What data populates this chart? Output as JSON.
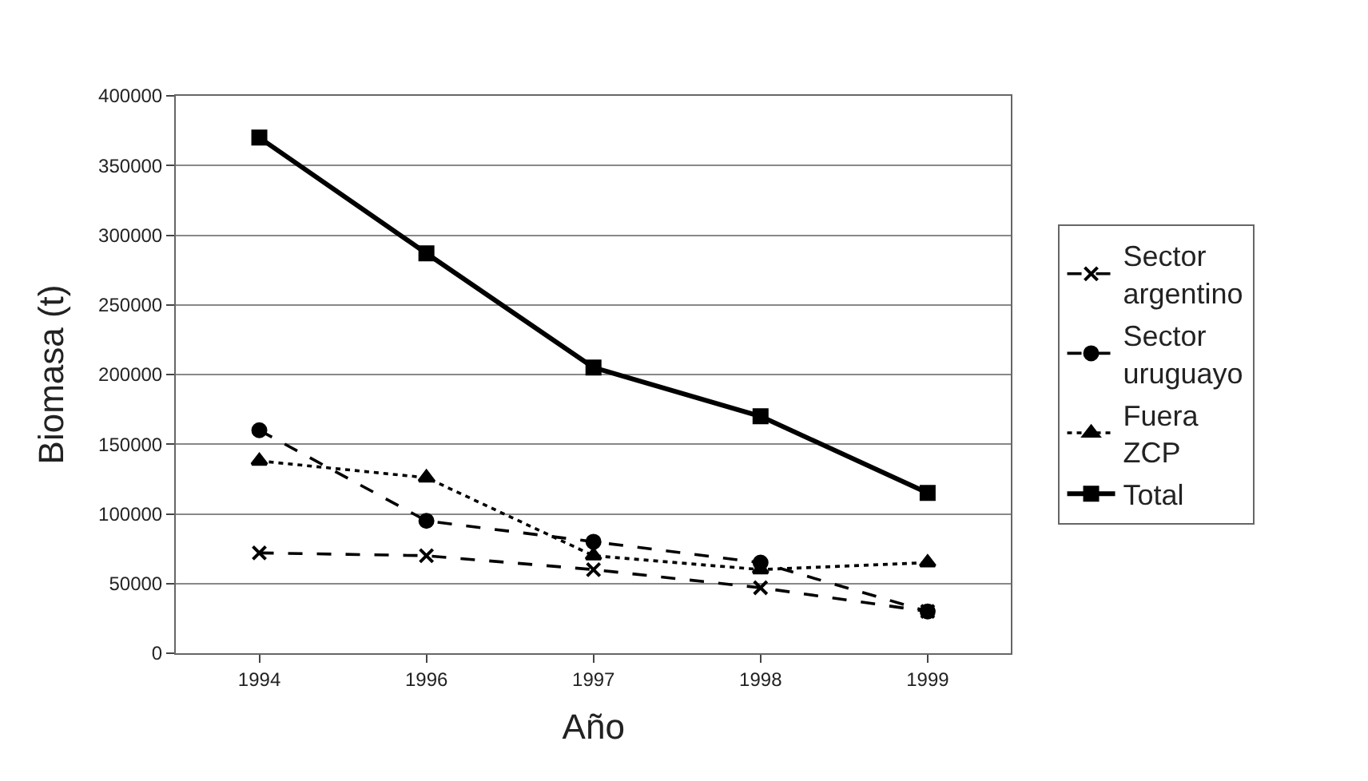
{
  "chart_data": {
    "type": "line",
    "xlabel": "Año",
    "ylabel": "Biomasa (t)",
    "categories": [
      "1994",
      "1996",
      "1997",
      "1998",
      "1999"
    ],
    "series": [
      {
        "name": "Sector argentino",
        "color": "#000000",
        "marker": "cross",
        "line_style": "dashed",
        "values": [
          72000,
          70000,
          60000,
          47000,
          30000
        ]
      },
      {
        "name": "Sector uruguayo",
        "color": "#000000",
        "marker": "circle",
        "line_style": "dashed",
        "values": [
          160000,
          95000,
          80000,
          65000,
          30000
        ]
      },
      {
        "name": "Fuera ZCP",
        "color": "#000000",
        "marker": "triangle",
        "line_style": "dotted",
        "values": [
          138000,
          126000,
          70000,
          60000,
          65000
        ]
      },
      {
        "name": "Total",
        "color": "#000000",
        "marker": "square",
        "line_style": "solid",
        "values": [
          370000,
          287000,
          205000,
          170000,
          115000
        ]
      }
    ],
    "ylim": [
      0,
      400000
    ],
    "yticks": [
      0,
      50000,
      100000,
      150000,
      200000,
      250000,
      300000,
      350000,
      400000
    ],
    "grid": "y",
    "legend": "right"
  }
}
